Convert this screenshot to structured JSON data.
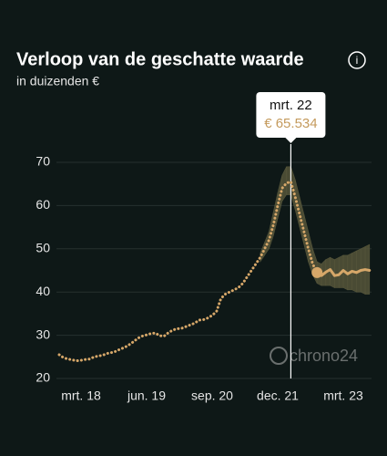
{
  "chart_data": {
    "type": "line",
    "title": "Verloop van de geschatte waarde",
    "subtitle": "in duizenden €",
    "info_icon": "i",
    "watermark": "chrono24",
    "tooltip": {
      "label": "mrt. 22",
      "value_label": "€ 65.534"
    },
    "categories": [
      null,
      null,
      null,
      null,
      null,
      "mrt. 18",
      null,
      null,
      null,
      null,
      null,
      null,
      null,
      null,
      null,
      null,
      null,
      null,
      null,
      null,
      "jun. 19",
      null,
      null,
      null,
      null,
      null,
      null,
      null,
      null,
      null,
      null,
      null,
      null,
      null,
      null,
      "sep. 20",
      null,
      null,
      null,
      null,
      null,
      null,
      null,
      null,
      null,
      null,
      null,
      null,
      null,
      null,
      "dec. 21",
      null,
      null,
      null,
      null,
      null,
      null,
      null,
      null,
      null,
      null,
      null,
      null,
      null,
      null,
      "mrt. 23",
      null,
      null,
      null,
      null,
      null,
      null
    ],
    "series": [
      {
        "style": "dotted",
        "color": "#d6a769",
        "values": [
          25.5,
          24.8,
          24.5,
          24.3,
          24.1,
          24.2,
          24.4,
          24.5,
          25,
          25.2,
          25.4,
          25.8,
          26,
          26.3,
          26.8,
          27.2,
          27.8,
          28.5,
          29.3,
          29.8,
          30.1,
          30.4,
          30.5,
          29.9,
          29.8,
          30.6,
          31.2,
          31.5,
          31.6,
          32,
          32.4,
          32.8,
          33.5,
          33.6,
          34,
          34.6,
          35.5,
          38.5,
          39.5,
          40,
          40.5,
          41,
          42,
          43.5,
          45,
          46.5,
          48,
          50,
          52,
          55.5,
          60,
          64,
          65.2,
          65.534,
          62,
          58,
          54,
          50,
          46.5,
          44.5,
          null,
          null,
          null,
          null,
          null,
          null,
          null,
          null,
          null,
          null,
          null,
          null
        ]
      },
      {
        "style": "solid",
        "color": "#d6a769",
        "values": [
          null,
          null,
          null,
          null,
          null,
          null,
          null,
          null,
          null,
          null,
          null,
          null,
          null,
          null,
          null,
          null,
          null,
          null,
          null,
          null,
          null,
          null,
          null,
          null,
          null,
          null,
          null,
          null,
          null,
          null,
          null,
          null,
          null,
          null,
          null,
          null,
          null,
          null,
          null,
          null,
          null,
          null,
          null,
          null,
          null,
          null,
          null,
          null,
          null,
          null,
          null,
          null,
          null,
          null,
          null,
          null,
          null,
          null,
          null,
          44.5,
          43.8,
          44.6,
          45.2,
          43.8,
          44,
          45,
          44.2,
          44.8,
          44.5,
          45,
          45.2,
          45
        ]
      }
    ],
    "band": {
      "color": "#55553a",
      "low": [
        null,
        null,
        null,
        null,
        null,
        null,
        null,
        null,
        null,
        null,
        null,
        null,
        null,
        null,
        null,
        null,
        null,
        null,
        null,
        null,
        null,
        null,
        null,
        null,
        null,
        null,
        null,
        null,
        null,
        null,
        null,
        null,
        null,
        null,
        null,
        null,
        null,
        null,
        null,
        null,
        null,
        null,
        null,
        null,
        null,
        null,
        47,
        48.5,
        50,
        53,
        57,
        61,
        62.5,
        62.5,
        59,
        55,
        51,
        47,
        44,
        42,
        41.5,
        41.5,
        41.5,
        41,
        41,
        41,
        40.5,
        40.5,
        40,
        40,
        39.5,
        39.5
      ],
      "high": [
        null,
        null,
        null,
        null,
        null,
        null,
        null,
        null,
        null,
        null,
        null,
        null,
        null,
        null,
        null,
        null,
        null,
        null,
        null,
        null,
        null,
        null,
        null,
        null,
        null,
        null,
        null,
        null,
        null,
        null,
        null,
        null,
        null,
        null,
        null,
        null,
        null,
        null,
        null,
        null,
        null,
        null,
        null,
        null,
        null,
        null,
        49,
        51.5,
        54,
        58.5,
        63,
        67,
        69,
        69,
        66,
        62,
        58,
        54,
        50,
        47,
        46.5,
        47.5,
        48,
        47.5,
        48,
        48.5,
        48.5,
        49,
        49.5,
        50,
        50.5,
        51
      ]
    },
    "ylim": [
      20,
      70
    ],
    "yticks": [
      20,
      30,
      40,
      50,
      60,
      70
    ],
    "grid": true
  }
}
